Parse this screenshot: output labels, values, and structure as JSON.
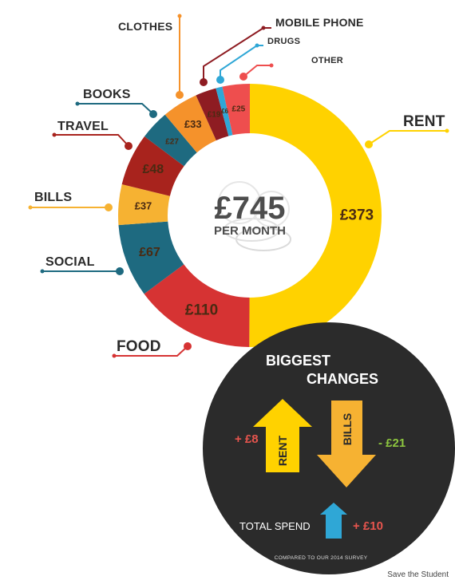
{
  "chart_data": {
    "type": "pie",
    "center_total": "£745",
    "center_subtitle": "PER MONTH",
    "segments": [
      {
        "name": "RENT",
        "value": 373,
        "display": "£373",
        "color": "#FFD200"
      },
      {
        "name": "FOOD",
        "value": 110,
        "display": "£110",
        "color": "#D63333"
      },
      {
        "name": "SOCIAL",
        "value": 67,
        "display": "£67",
        "color": "#1E6A80"
      },
      {
        "name": "BILLS",
        "value": 37,
        "display": "£37",
        "color": "#F6B232"
      },
      {
        "name": "TRAVEL",
        "value": 48,
        "display": "£48",
        "color": "#A8231D"
      },
      {
        "name": "BOOKS",
        "value": 27,
        "display": "£27",
        "color": "#1E6A80"
      },
      {
        "name": "CLOTHES",
        "value": 33,
        "display": "£33",
        "color": "#F5922B"
      },
      {
        "name": "MOBILE PHONE",
        "value": 19,
        "display": "£19",
        "color": "#8E1C22"
      },
      {
        "name": "DRUGS",
        "value": 6,
        "display": "£6",
        "color": "#2FA7D6"
      },
      {
        "name": "OTHER",
        "value": 25,
        "display": "£25",
        "color": "#EE4E4E"
      }
    ],
    "biggest_changes": {
      "title_line1": "BIGGEST",
      "title_line2": "CHANGES",
      "rent": {
        "label": "RENT",
        "delta": "+ £8",
        "delta_color": "#E8554E"
      },
      "bills": {
        "label": "BILLS",
        "delta": "- £21",
        "delta_color": "#8DC63F"
      },
      "total_spend": {
        "label": "TOTAL SPEND",
        "delta": "+ £10",
        "delta_color": "#E8554E"
      },
      "footnote": "COMPARED TO OUR 2014 SURVEY"
    }
  },
  "credit": "Save the Student"
}
